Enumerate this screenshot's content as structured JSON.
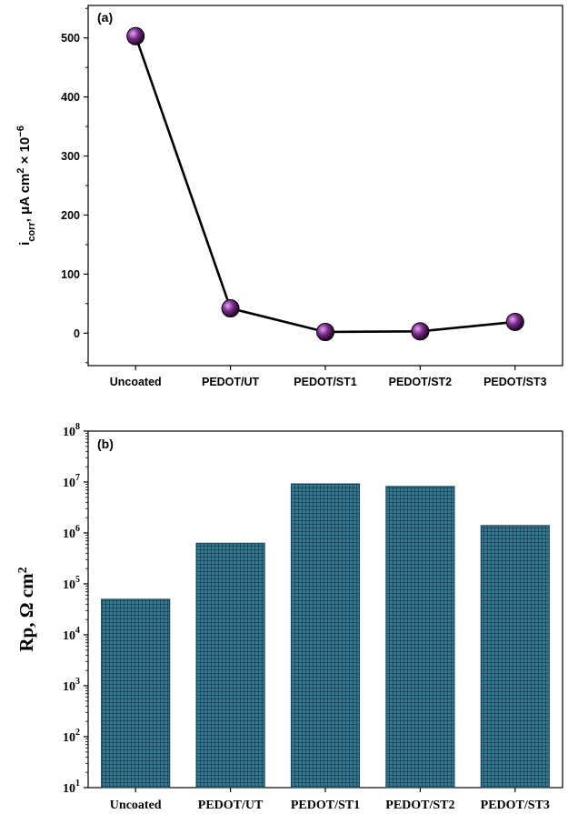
{
  "chart_data": [
    {
      "panel": "(a)",
      "type": "line",
      "categories": [
        "Uncoated",
        "PEDOT/UT",
        "PEDOT/ST1",
        "PEDOT/ST2",
        "PEDOT/ST3"
      ],
      "values": [
        503,
        42,
        2,
        3,
        19
      ],
      "ylabel": "i_corr, μA cm² × 10⁻⁶",
      "ylim": [
        -55,
        555
      ],
      "yticks": [
        "0",
        "100",
        "200",
        "300",
        "400",
        "500"
      ],
      "marker_color": "#7a2a8c",
      "line_color": "#000000"
    },
    {
      "panel": "(b)",
      "type": "bar",
      "scale": "log",
      "categories": [
        "Uncoated",
        "PEDOT/UT",
        "PEDOT/ST1",
        "PEDOT/ST2",
        "PEDOT/ST3"
      ],
      "values": [
        50000,
        630000,
        9200000,
        8200000,
        1400000
      ],
      "ylabel": "Rp, Ω cm²",
      "ylim": [
        10,
        100000000
      ],
      "ytick_exponents": [
        "1",
        "2",
        "3",
        "4",
        "5",
        "6",
        "7",
        "8"
      ],
      "ytick_base": "10",
      "bar_color": "#2e7d8c"
    }
  ]
}
